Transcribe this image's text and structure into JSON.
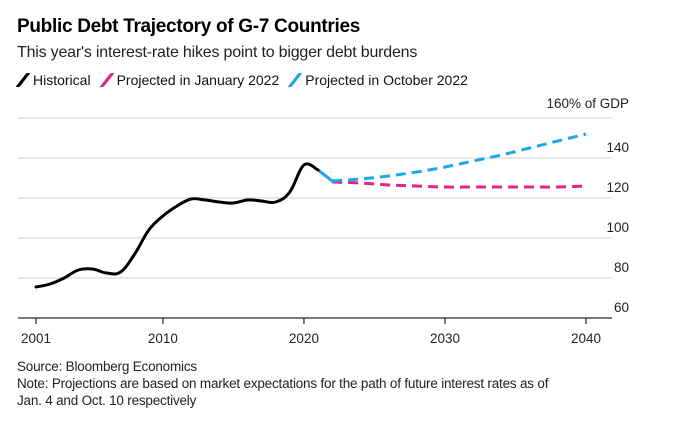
{
  "chart_data": {
    "type": "line",
    "title": "Public Debt Trajectory of G-7 Countries",
    "subtitle": "This year's interest-rate hikes point to bigger debt burdens",
    "xlabel": "",
    "ylabel": "% of GDP",
    "xlim": [
      2001,
      2040
    ],
    "ylim": [
      60,
      160
    ],
    "grid": true,
    "legend_position": "top-left",
    "x_ticks": [
      {
        "value": 2001,
        "label": "2001"
      },
      {
        "value": 2010,
        "label": "2010"
      },
      {
        "value": 2020,
        "label": "2020"
      },
      {
        "value": 2030,
        "label": "2030"
      },
      {
        "value": 2040,
        "label": "2040"
      }
    ],
    "y_ticks": [
      {
        "value": 60,
        "label": "60"
      },
      {
        "value": 80,
        "label": "80"
      },
      {
        "value": 100,
        "label": "100"
      },
      {
        "value": 120,
        "label": "120"
      },
      {
        "value": 140,
        "label": "140"
      },
      {
        "value": 160,
        "label": "160% of GDP"
      }
    ],
    "series": [
      {
        "name": "Historical",
        "color": "#000000",
        "style": "solid",
        "x": [
          2001,
          2002,
          2003,
          2004,
          2005,
          2006,
          2007,
          2008,
          2009,
          2010,
          2011,
          2012,
          2013,
          2014,
          2015,
          2016,
          2017,
          2018,
          2019,
          2020,
          2021
        ],
        "y": [
          75.5,
          77,
          80,
          84,
          84.5,
          82.5,
          83,
          92,
          104,
          111,
          116,
          119.5,
          119,
          118,
          117.5,
          119,
          118.5,
          118,
          123,
          136.5,
          134
        ]
      },
      {
        "name": "Projected in January 2022",
        "color": "#e8228c",
        "style": "dashed",
        "x": [
          2022,
          2024,
          2026,
          2028,
          2030,
          2032,
          2034,
          2036,
          2038,
          2040
        ],
        "y": [
          128,
          127.5,
          126.5,
          126,
          125.5,
          125.5,
          125.5,
          125.5,
          125.5,
          126
        ]
      },
      {
        "name": "Projected in October 2022",
        "color": "#1ca7e6",
        "style": "dashed",
        "x": [
          2021,
          2022,
          2024,
          2026,
          2028,
          2030,
          2032,
          2034,
          2036,
          2038,
          2040
        ],
        "y": [
          134,
          128.5,
          129.5,
          131,
          133,
          135.5,
          138.5,
          141.5,
          145,
          148.5,
          152
        ]
      }
    ]
  },
  "legend": [
    {
      "label": "Historical",
      "color": "#000000"
    },
    {
      "label": "Projected in January 2022",
      "color": "#e8228c"
    },
    {
      "label": "Projected in October 2022",
      "color": "#1ca7e6"
    }
  ],
  "footer": {
    "source": "Source: Bloomberg Economics",
    "note_line1": "Note: Projections are based on market expectations for the path of future interest rates as of",
    "note_line2": "Jan. 4 and Oct. 10 respectively"
  }
}
